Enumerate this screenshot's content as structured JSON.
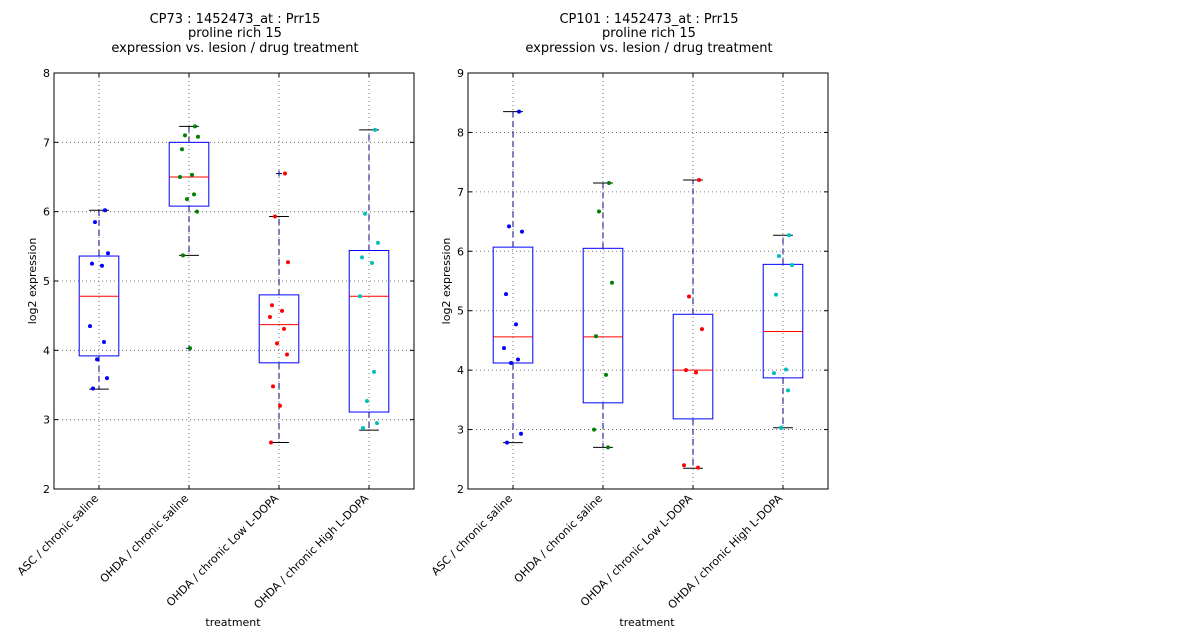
{
  "colors": {
    "box": "#0000ff",
    "median": "#ff0000",
    "whisker": "#000080",
    "cap": "#000000",
    "grid": "#555555",
    "points": [
      "#0000ff",
      "#008000",
      "#ff0000",
      "#00bfbf"
    ]
  },
  "chart_data": [
    {
      "type": "box",
      "title_lines": [
        "CP73 : 1452473_at : Prr15",
        "proline rich 15",
        "expression vs. lesion / drug treatment"
      ],
      "xlabel": "treatment",
      "ylabel": "log2 expression",
      "ylim": [
        2,
        8
      ],
      "yticks": [
        "2",
        "3",
        "4",
        "5",
        "6",
        "7",
        "8"
      ],
      "grid": true,
      "categories": [
        "ASC / chronic saline",
        "OHDA / chronic saline",
        "OHDA / chronic Low L-DOPA",
        "OHDA / chronic High L-DOPA"
      ],
      "boxes": [
        {
          "whislo": 3.44,
          "q1": 3.92,
          "med": 4.78,
          "q3": 5.36,
          "whishi": 6.02,
          "fliers": []
        },
        {
          "whislo": 5.37,
          "q1": 6.08,
          "med": 6.5,
          "q3": 7.0,
          "whishi": 7.23,
          "fliers": [
            4.03
          ]
        },
        {
          "whislo": 2.67,
          "q1": 3.82,
          "med": 4.37,
          "q3": 4.8,
          "whishi": 5.93,
          "fliers": [
            6.55
          ]
        },
        {
          "whislo": 2.85,
          "q1": 3.11,
          "med": 4.78,
          "q3": 5.44,
          "whishi": 7.18,
          "fliers": []
        }
      ],
      "points": [
        [
          6.02,
          5.85,
          5.4,
          5.25,
          5.22,
          4.35,
          4.12,
          3.87,
          3.6,
          3.45
        ],
        [
          7.23,
          7.1,
          7.08,
          6.9,
          6.53,
          6.5,
          6.25,
          6.18,
          6.0,
          5.37,
          4.03
        ],
        [
          6.55,
          5.93,
          5.27,
          4.65,
          4.57,
          4.48,
          4.31,
          4.1,
          3.94,
          3.48,
          3.2,
          2.67
        ],
        [
          7.18,
          5.97,
          5.55,
          5.34,
          5.26,
          4.78,
          3.69,
          3.27,
          2.95,
          2.88
        ]
      ]
    },
    {
      "type": "box",
      "title_lines": [
        "CP101 : 1452473_at : Prr15",
        "proline rich 15",
        "expression vs. lesion / drug treatment"
      ],
      "xlabel": "treatment",
      "ylabel": "log2 expression",
      "ylim": [
        2,
        9
      ],
      "yticks": [
        "2",
        "3",
        "4",
        "5",
        "6",
        "7",
        "8",
        "9"
      ],
      "grid": true,
      "categories": [
        "ASC / chronic saline",
        "OHDA / chronic saline",
        "OHDA / chronic Low L-DOPA",
        "OHDA / chronic High L-DOPA"
      ],
      "boxes": [
        {
          "whislo": 2.78,
          "q1": 4.12,
          "med": 4.56,
          "q3": 6.07,
          "whishi": 8.35,
          "fliers": []
        },
        {
          "whislo": 2.7,
          "q1": 3.45,
          "med": 4.56,
          "q3": 6.05,
          "whishi": 7.15,
          "fliers": []
        },
        {
          "whislo": 2.35,
          "q1": 3.18,
          "med": 4.0,
          "q3": 4.94,
          "whishi": 7.2,
          "fliers": []
        },
        {
          "whislo": 3.03,
          "q1": 3.87,
          "med": 4.65,
          "q3": 5.78,
          "whishi": 6.27,
          "fliers": []
        }
      ],
      "points": [
        [
          8.35,
          6.42,
          6.33,
          5.28,
          4.77,
          4.37,
          4.18,
          4.12,
          2.93,
          2.78
        ],
        [
          7.15,
          6.67,
          5.47,
          4.57,
          3.92,
          3.0,
          2.7
        ],
        [
          7.2,
          5.24,
          4.69,
          4.0,
          3.96,
          2.4,
          2.36
        ],
        [
          6.27,
          5.92,
          5.77,
          5.27,
          4.01,
          3.95,
          3.66,
          3.03
        ]
      ]
    }
  ]
}
